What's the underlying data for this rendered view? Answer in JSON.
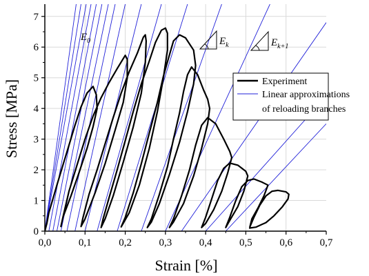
{
  "chart_data": {
    "type": "line",
    "xlabel": "Strain [%]",
    "ylabel": "Stress [MPa]",
    "xlim": [
      0,
      0.7
    ],
    "ylim": [
      0,
      7.4
    ],
    "x_ticks": [
      "0,0",
      "0,1",
      "0,2",
      "0,3",
      "0,4",
      "0,5",
      "0,6",
      "0,7"
    ],
    "y_ticks": [
      "0",
      "1",
      "2",
      "3",
      "4",
      "5",
      "6",
      "7"
    ],
    "grid": true,
    "legend_position": "right",
    "legend": [
      {
        "label": "Experiment",
        "color": "#000000"
      },
      {
        "label": "Linear approximations",
        "label2": "of reloading branches",
        "color": "#1f1fd8"
      }
    ],
    "annotations": [
      {
        "base": "E",
        "sub": "0"
      },
      {
        "base": "E",
        "sub": "k"
      },
      {
        "base": "E",
        "sub": "k+1"
      }
    ],
    "series": [
      {
        "name": "Experiment",
        "color": "#000000",
        "points": [
          [
            0.0,
            0.0
          ],
          [
            0.005,
            0.25
          ],
          [
            0.01,
            0.6
          ],
          [
            0.02,
            1.05
          ],
          [
            0.03,
            1.5
          ],
          [
            0.045,
            2.15
          ],
          [
            0.06,
            2.8
          ],
          [
            0.075,
            3.45
          ],
          [
            0.09,
            4.05
          ],
          [
            0.105,
            4.5
          ],
          [
            0.12,
            4.72
          ],
          [
            0.128,
            4.45
          ],
          [
            0.13,
            4.0
          ],
          [
            0.12,
            3.4
          ],
          [
            0.105,
            2.7
          ],
          [
            0.085,
            1.9
          ],
          [
            0.065,
            1.15
          ],
          [
            0.045,
            0.45
          ],
          [
            0.04,
            0.15
          ],
          [
            0.045,
            0.45
          ],
          [
            0.06,
            1.3
          ],
          [
            0.08,
            2.15
          ],
          [
            0.1,
            3.0
          ],
          [
            0.12,
            3.75
          ],
          [
            0.14,
            4.35
          ],
          [
            0.16,
            4.85
          ],
          [
            0.18,
            5.3
          ],
          [
            0.2,
            5.73
          ],
          [
            0.205,
            5.6
          ],
          [
            0.205,
            5.0
          ],
          [
            0.195,
            4.2
          ],
          [
            0.175,
            3.3
          ],
          [
            0.15,
            2.2
          ],
          [
            0.125,
            1.25
          ],
          [
            0.1,
            0.4
          ],
          [
            0.09,
            0.15
          ],
          [
            0.095,
            0.45
          ],
          [
            0.11,
            1.2
          ],
          [
            0.13,
            2.0
          ],
          [
            0.15,
            2.85
          ],
          [
            0.17,
            3.7
          ],
          [
            0.19,
            4.5
          ],
          [
            0.21,
            5.2
          ],
          [
            0.23,
            5.8
          ],
          [
            0.245,
            6.32
          ],
          [
            0.25,
            6.4
          ],
          [
            0.252,
            6.2
          ],
          [
            0.25,
            5.5
          ],
          [
            0.24,
            4.5
          ],
          [
            0.22,
            3.4
          ],
          [
            0.195,
            2.25
          ],
          [
            0.17,
            1.15
          ],
          [
            0.15,
            0.4
          ],
          [
            0.14,
            0.12
          ],
          [
            0.145,
            0.4
          ],
          [
            0.16,
            1.1
          ],
          [
            0.18,
            2.0
          ],
          [
            0.2,
            2.95
          ],
          [
            0.22,
            3.9
          ],
          [
            0.24,
            4.8
          ],
          [
            0.26,
            5.55
          ],
          [
            0.275,
            6.15
          ],
          [
            0.29,
            6.55
          ],
          [
            0.3,
            6.62
          ],
          [
            0.305,
            6.45
          ],
          [
            0.305,
            5.9
          ],
          [
            0.295,
            5.0
          ],
          [
            0.28,
            3.9
          ],
          [
            0.26,
            2.7
          ],
          [
            0.235,
            1.5
          ],
          [
            0.21,
            0.6
          ],
          [
            0.19,
            0.14
          ],
          [
            0.2,
            0.45
          ],
          [
            0.22,
            1.25
          ],
          [
            0.24,
            2.2
          ],
          [
            0.26,
            3.2
          ],
          [
            0.28,
            4.2
          ],
          [
            0.295,
            5.05
          ],
          [
            0.31,
            5.75
          ],
          [
            0.32,
            6.2
          ],
          [
            0.335,
            6.4
          ],
          [
            0.35,
            6.3
          ],
          [
            0.37,
            5.9
          ],
          [
            0.375,
            5.4
          ],
          [
            0.37,
            4.8
          ],
          [
            0.355,
            3.9
          ],
          [
            0.335,
            2.9
          ],
          [
            0.31,
            1.85
          ],
          [
            0.285,
            0.9
          ],
          [
            0.265,
            0.3
          ],
          [
            0.255,
            0.12
          ],
          [
            0.265,
            0.4
          ],
          [
            0.285,
            1.2
          ],
          [
            0.305,
            2.1
          ],
          [
            0.32,
            3.0
          ],
          [
            0.335,
            3.85
          ],
          [
            0.345,
            4.55
          ],
          [
            0.355,
            5.1
          ],
          [
            0.365,
            5.35
          ],
          [
            0.38,
            5.1
          ],
          [
            0.395,
            4.6
          ],
          [
            0.405,
            4.3
          ],
          [
            0.41,
            4.0
          ],
          [
            0.405,
            3.5
          ],
          [
            0.39,
            2.7
          ],
          [
            0.37,
            1.8
          ],
          [
            0.345,
            0.9
          ],
          [
            0.32,
            0.3
          ],
          [
            0.31,
            0.12
          ],
          [
            0.32,
            0.4
          ],
          [
            0.34,
            1.15
          ],
          [
            0.36,
            2.0
          ],
          [
            0.375,
            2.8
          ],
          [
            0.39,
            3.45
          ],
          [
            0.405,
            3.7
          ],
          [
            0.425,
            3.5
          ],
          [
            0.445,
            3.0
          ],
          [
            0.46,
            2.6
          ],
          [
            0.465,
            2.4
          ],
          [
            0.455,
            1.9
          ],
          [
            0.44,
            1.3
          ],
          [
            0.42,
            0.7
          ],
          [
            0.4,
            0.25
          ],
          [
            0.39,
            0.12
          ],
          [
            0.4,
            0.45
          ],
          [
            0.415,
            1.05
          ],
          [
            0.43,
            1.65
          ],
          [
            0.445,
            2.05
          ],
          [
            0.46,
            2.22
          ],
          [
            0.48,
            2.15
          ],
          [
            0.5,
            1.95
          ],
          [
            0.505,
            1.8
          ],
          [
            0.495,
            1.3
          ],
          [
            0.48,
            0.8
          ],
          [
            0.46,
            0.35
          ],
          [
            0.45,
            0.12
          ],
          [
            0.46,
            0.45
          ],
          [
            0.475,
            1.0
          ],
          [
            0.49,
            1.45
          ],
          [
            0.505,
            1.65
          ],
          [
            0.52,
            1.7
          ],
          [
            0.54,
            1.6
          ],
          [
            0.555,
            1.5
          ],
          [
            0.545,
            1.15
          ],
          [
            0.53,
            0.75
          ],
          [
            0.515,
            0.4
          ],
          [
            0.51,
            0.14
          ],
          [
            0.52,
            0.45
          ],
          [
            0.535,
            0.85
          ],
          [
            0.55,
            1.15
          ],
          [
            0.565,
            1.3
          ],
          [
            0.58,
            1.33
          ],
          [
            0.6,
            1.28
          ],
          [
            0.607,
            1.2
          ],
          [
            0.605,
            1.05
          ],
          [
            0.59,
            0.78
          ],
          [
            0.57,
            0.5
          ],
          [
            0.55,
            0.28
          ],
          [
            0.525,
            0.13
          ],
          [
            0.508,
            0.1
          ]
        ]
      },
      {
        "name": "Linear approximations of reloading branches",
        "color": "#1f1fd8",
        "lines": [
          [
            [
              0.0,
              0.0
            ],
            [
              0.078,
              7.4
            ]
          ],
          [
            [
              0.0,
              0.0
            ],
            [
              0.09,
              7.4
            ]
          ],
          [
            [
              0.0,
              0.0
            ],
            [
              0.103,
              7.4
            ]
          ],
          [
            [
              0.01,
              0.0
            ],
            [
              0.115,
              7.4
            ]
          ],
          [
            [
              0.02,
              0.0
            ],
            [
              0.128,
              7.4
            ]
          ],
          [
            [
              0.03,
              0.0
            ],
            [
              0.142,
              7.4
            ]
          ],
          [
            [
              0.04,
              0.0
            ],
            [
              0.158,
              7.4
            ]
          ],
          [
            [
              0.055,
              0.0
            ],
            [
              0.175,
              7.4
            ]
          ],
          [
            [
              0.075,
              0.0
            ],
            [
              0.2,
              7.4
            ]
          ],
          [
            [
              0.1,
              0.0
            ],
            [
              0.24,
              7.4
            ]
          ],
          [
            [
              0.13,
              0.0
            ],
            [
              0.29,
              7.4
            ]
          ],
          [
            [
              0.18,
              0.0
            ],
            [
              0.355,
              7.4
            ]
          ],
          [
            [
              0.24,
              0.0
            ],
            [
              0.44,
              7.4
            ]
          ],
          [
            [
              0.3,
              0.0
            ],
            [
              0.56,
              7.4
            ]
          ],
          [
            [
              0.34,
              0.0
            ],
            [
              0.7,
              6.8
            ]
          ],
          [
            [
              0.4,
              0.0
            ],
            [
              0.7,
              4.4
            ]
          ],
          [
            [
              0.45,
              0.0
            ],
            [
              0.7,
              3.5
            ]
          ]
        ]
      }
    ]
  }
}
